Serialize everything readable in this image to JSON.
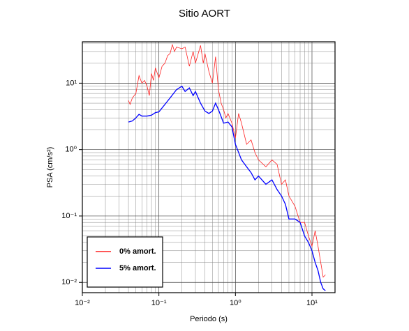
{
  "chart_data": {
    "type": "line",
    "title": "Sitio AORT",
    "x_label": "Periodo (s)",
    "y_label": "PSA (cm/s²)",
    "log_x": true,
    "log_y": true,
    "grid": true,
    "legend": "lower left",
    "xlim": [
      0.01,
      20
    ],
    "ylim": [
      0.007,
      42
    ],
    "xticks": [
      {
        "value": 0.01,
        "label": "10⁻²"
      },
      {
        "value": 0.1,
        "label": "10⁻¹"
      },
      {
        "value": 1,
        "label": "10⁰"
      },
      {
        "value": 10,
        "label": "10¹"
      }
    ],
    "yticks": [
      {
        "value": 0.01,
        "label": "10⁻²"
      },
      {
        "value": 0.1,
        "label": "10⁻¹"
      },
      {
        "value": 1,
        "label": "10⁰"
      },
      {
        "value": 10,
        "label": "10¹"
      }
    ],
    "series": [
      {
        "name": "0% amort.",
        "color": "#ff2020",
        "x": [
          0.04,
          0.042,
          0.045,
          0.05,
          0.055,
          0.06,
          0.065,
          0.07,
          0.075,
          0.08,
          0.085,
          0.09,
          0.1,
          0.11,
          0.12,
          0.13,
          0.14,
          0.15,
          0.16,
          0.17,
          0.2,
          0.22,
          0.25,
          0.28,
          0.3,
          0.35,
          0.38,
          0.4,
          0.45,
          0.5,
          0.55,
          0.6,
          0.65,
          0.7,
          0.75,
          0.8,
          0.9,
          1.0,
          1.1,
          1.2,
          1.4,
          1.6,
          1.8,
          2.0,
          2.5,
          3.0,
          3.5,
          4.0,
          4.5,
          5,
          6,
          7,
          8,
          9,
          10,
          11,
          12,
          14,
          15
        ],
        "values": [
          5.5,
          4.8,
          6,
          7,
          13,
          10,
          11,
          9,
          6.5,
          14,
          11,
          17,
          12,
          18,
          20,
          26,
          28,
          38,
          30,
          35,
          33,
          35,
          18,
          30,
          20,
          37,
          20,
          28,
          15,
          10,
          25,
          8,
          5,
          4,
          3,
          3.5,
          2.5,
          1.5,
          3.5,
          2.5,
          1.2,
          1.4,
          0.9,
          0.7,
          0.55,
          0.7,
          0.6,
          0.3,
          0.35,
          0.2,
          0.14,
          0.08,
          0.08,
          0.05,
          0.035,
          0.06,
          0.035,
          0.012,
          0.013
        ]
      },
      {
        "name": "5% amort.",
        "color": "#0000ff",
        "x": [
          0.04,
          0.045,
          0.05,
          0.055,
          0.06,
          0.07,
          0.08,
          0.09,
          0.1,
          0.12,
          0.14,
          0.17,
          0.2,
          0.22,
          0.25,
          0.28,
          0.3,
          0.35,
          0.4,
          0.45,
          0.5,
          0.55,
          0.6,
          0.7,
          0.8,
          0.9,
          1.0,
          1.2,
          1.4,
          1.6,
          1.8,
          2.0,
          2.5,
          3,
          3.5,
          4,
          4.5,
          5,
          6,
          7,
          8,
          9,
          10,
          11,
          12,
          13,
          14,
          15
        ],
        "values": [
          2.6,
          2.7,
          3,
          3.4,
          3.2,
          3.2,
          3.3,
          3.6,
          3.7,
          4.8,
          6,
          8,
          9,
          7.5,
          8.5,
          6.5,
          7.5,
          5,
          3.8,
          3.5,
          3.8,
          5,
          4,
          2.5,
          2.6,
          2.2,
          1.2,
          0.7,
          0.55,
          0.45,
          0.35,
          0.4,
          0.3,
          0.35,
          0.25,
          0.2,
          0.15,
          0.09,
          0.09,
          0.08,
          0.05,
          0.04,
          0.03,
          0.02,
          0.015,
          0.01,
          0.008,
          0.0075
        ]
      }
    ]
  }
}
